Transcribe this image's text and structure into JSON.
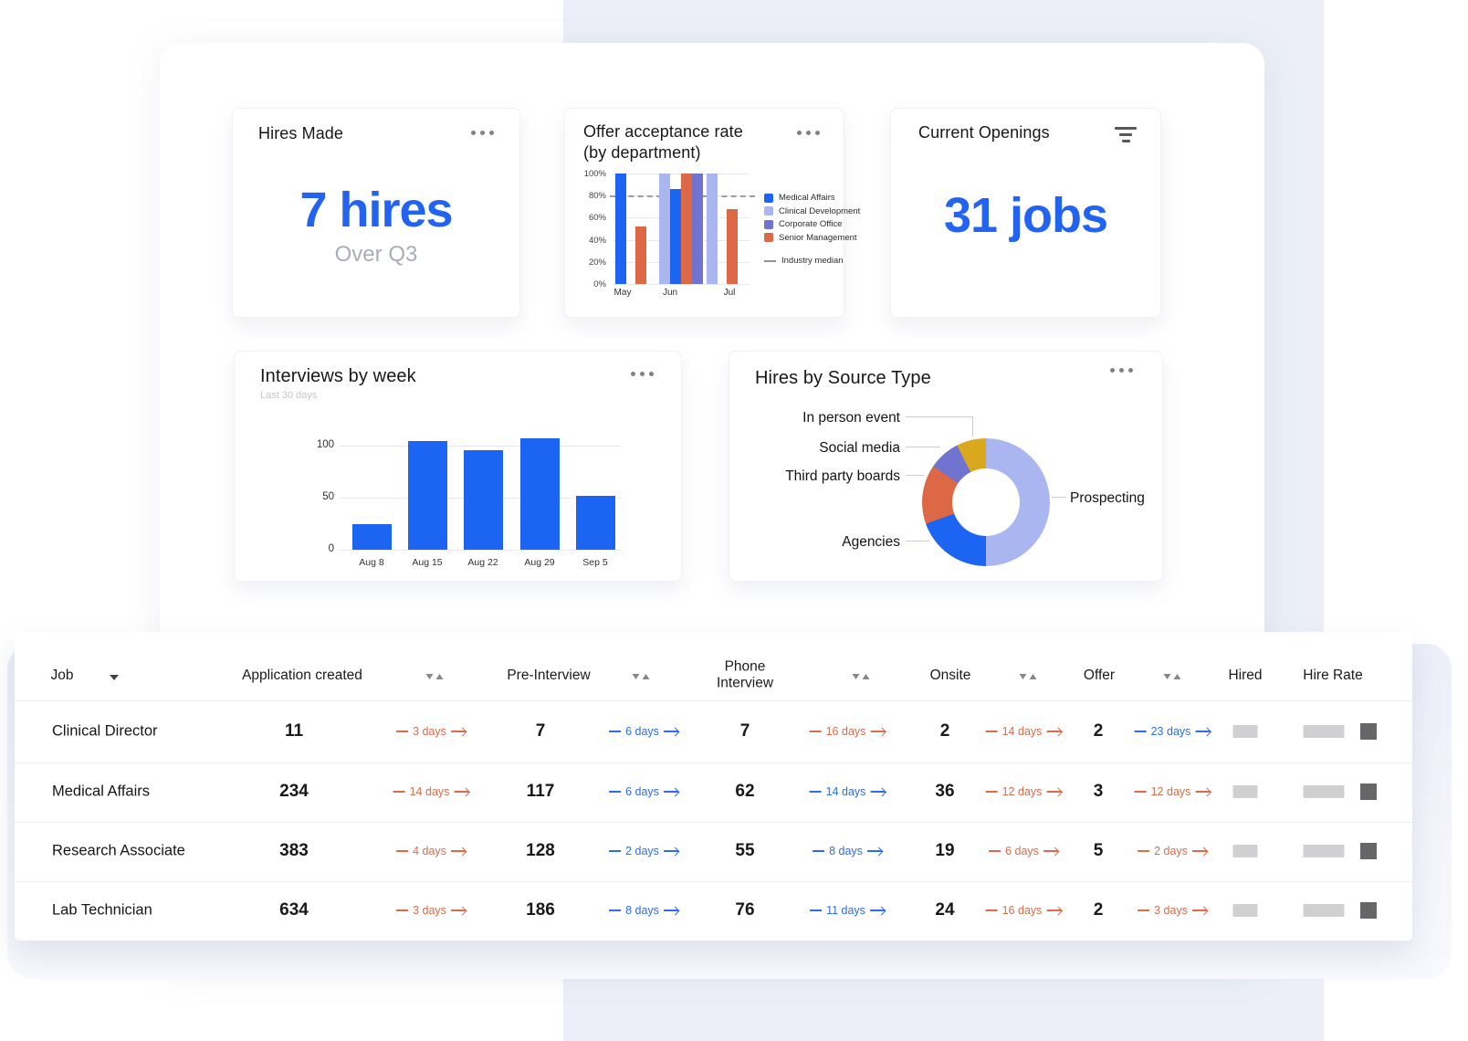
{
  "colors": {
    "accent_blue": "#2264f1",
    "bar_blue": "#1c64f2",
    "periwinkle": "#a9b6f0",
    "purple": "#7173d1",
    "orange": "#dc6845",
    "gold": "#d9a81c",
    "days_orange": "#dc6b4b",
    "days_blue": "#2f6bef"
  },
  "cards": {
    "hires_made": {
      "title": "Hires Made",
      "value": "7 hires",
      "subtitle": "Over Q3"
    },
    "offer_acceptance": {
      "title_line1": "Offer acceptance rate",
      "title_line2": "(by department)"
    },
    "current_openings": {
      "title": "Current Openings",
      "value": "31 jobs"
    },
    "interviews_by_week": {
      "title": "Interviews by week",
      "subtitle": "Last 30 days"
    },
    "hires_by_source": {
      "title": "Hires by Source Type"
    }
  },
  "chart_data": [
    {
      "id": "offer-acceptance-by-department",
      "type": "bar",
      "title": "Offer acceptance rate (by department)",
      "categories": [
        "May",
        "Jun",
        "Jul"
      ],
      "series": [
        {
          "name": "Medical Affairs",
          "color": "#1c64f2",
          "values": [
            100,
            86,
            null
          ]
        },
        {
          "name": "Clinical Development",
          "color": "#a9b6f0",
          "values": [
            null,
            100,
            100
          ]
        },
        {
          "name": "Corporate Office",
          "color": "#7173d1",
          "values": [
            null,
            100,
            null
          ]
        },
        {
          "name": "Senior Management",
          "color": "#dc6845",
          "values": [
            52,
            100,
            68
          ]
        }
      ],
      "reference_line": {
        "label": "Industry median",
        "value": 80
      },
      "y_ticks": [
        "100%",
        "80%",
        "60%",
        "40%",
        "20%",
        "0%"
      ],
      "ylim": [
        0,
        100
      ],
      "grid": true,
      "legend_position": "right"
    },
    {
      "id": "interviews-by-week",
      "type": "bar",
      "title": "Interviews by week",
      "subtitle": "Last 30 days",
      "categories": [
        "Aug 8",
        "Aug 15",
        "Aug 22",
        "Aug 29",
        "Sep 5"
      ],
      "values": [
        25,
        104,
        96,
        107,
        52
      ],
      "y_ticks": [
        "0",
        "50",
        "100"
      ],
      "y_tick_values": [
        0,
        50,
        100
      ],
      "ylim": [
        0,
        115
      ],
      "grid": true,
      "bar_color": "#1c64f2"
    },
    {
      "id": "hires-by-source-type",
      "type": "pie",
      "donut": true,
      "title": "Hires by Source Type",
      "slices": [
        {
          "label": "Prospecting",
          "percent": 50,
          "color": "#a9b6f0"
        },
        {
          "label": "Agencies",
          "percent": 19.5,
          "color": "#1c64f2"
        },
        {
          "label": "Third party boards",
          "percent": 15,
          "color": "#dc6845"
        },
        {
          "label": "Social media",
          "percent": 8,
          "color": "#7173d1"
        },
        {
          "label": "In person event",
          "percent": 7.5,
          "color": "#d9a81c"
        }
      ]
    }
  ],
  "table": {
    "columns": [
      {
        "label": "Job"
      },
      {
        "label": "Application created"
      },
      {
        "label": "Pre-Interview"
      },
      {
        "label": "Phone Interview"
      },
      {
        "label": "Onsite"
      },
      {
        "label": "Offer"
      },
      {
        "label": "Hired"
      },
      {
        "label": "Hire Rate"
      }
    ],
    "rows": [
      {
        "job": "Clinical Director",
        "stages": [
          {
            "value": "11",
            "days": "3 days",
            "days_color": "orange"
          },
          {
            "value": "7",
            "days": "6 days",
            "days_color": "blue"
          },
          {
            "value": "7",
            "days": "16 days",
            "days_color": "orange"
          },
          {
            "value": "2",
            "days": "14 days",
            "days_color": "orange"
          },
          {
            "value": "2",
            "days": "23 days",
            "days_color": "blue"
          }
        ]
      },
      {
        "job": "Medical Affairs",
        "stages": [
          {
            "value": "234",
            "days": "14 days",
            "days_color": "orange"
          },
          {
            "value": "117",
            "days": "6 days",
            "days_color": "blue"
          },
          {
            "value": "62",
            "days": "14 days",
            "days_color": "blue"
          },
          {
            "value": "36",
            "days": "12 days",
            "days_color": "orange"
          },
          {
            "value": "3",
            "days": "12 days",
            "days_color": "orange"
          }
        ]
      },
      {
        "job": "Research Associate",
        "stages": [
          {
            "value": "383",
            "days": "4 days",
            "days_color": "orange"
          },
          {
            "value": "128",
            "days": "2 days",
            "days_color": "blue"
          },
          {
            "value": "55",
            "days": "8 days",
            "days_color": "blue"
          },
          {
            "value": "19",
            "days": "6 days",
            "days_color": "orange"
          },
          {
            "value": "5",
            "days": "2 days",
            "days_color": "orange"
          }
        ]
      },
      {
        "job": "Lab Technician",
        "stages": [
          {
            "value": "634",
            "days": "3 days",
            "days_color": "orange"
          },
          {
            "value": "186",
            "days": "8 days",
            "days_color": "blue"
          },
          {
            "value": "76",
            "days": "11 days",
            "days_color": "blue"
          },
          {
            "value": "24",
            "days": "16 days",
            "days_color": "orange"
          },
          {
            "value": "2",
            "days": "3 days",
            "days_color": "orange"
          }
        ]
      }
    ]
  }
}
